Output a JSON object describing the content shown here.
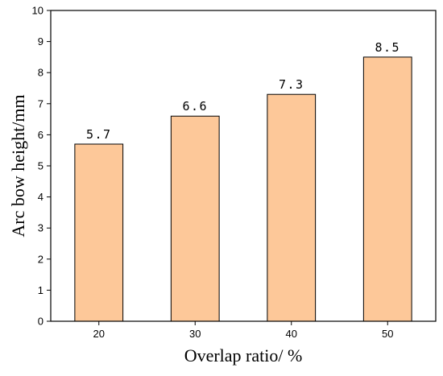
{
  "chart_data": {
    "type": "bar",
    "categories": [
      "20",
      "30",
      "40",
      "50"
    ],
    "values": [
      5.7,
      6.6,
      7.3,
      8.5
    ],
    "data_labels": [
      "5.7",
      "6.6",
      "7.3",
      "8.5"
    ],
    "xlabel": "Overlap ratio/ %",
    "ylabel": "Arc bow height/mm",
    "ylim": [
      0,
      10
    ],
    "yticks": [
      0,
      1,
      2,
      3,
      4,
      5,
      6,
      7,
      8,
      9,
      10
    ],
    "grid": false,
    "colors": {
      "bar_fill": "#FDC899",
      "bar_stroke": "#000000"
    }
  }
}
